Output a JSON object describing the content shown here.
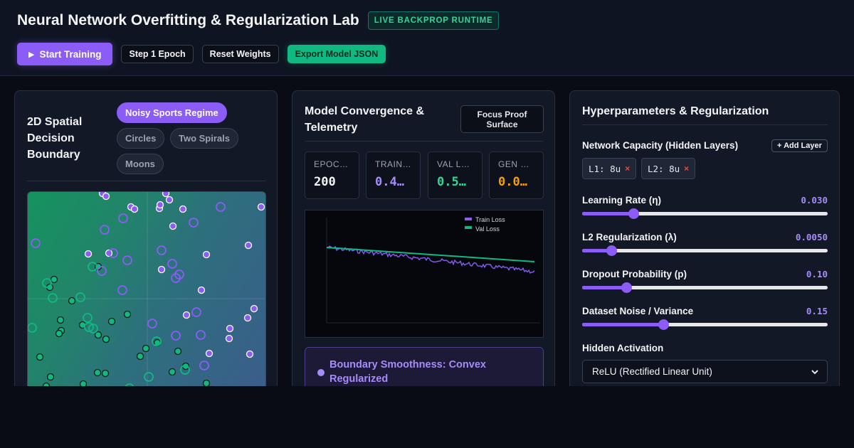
{
  "header": {
    "title": "Neural Network Overfitting & Regularization Lab",
    "badge": "LIVE BACKPROP RUNTIME"
  },
  "toolbar": {
    "start_label": "Start Training",
    "step_label": "Step 1 Epoch",
    "reset_label": "Reset Weights",
    "export_label": "Export Model JSON"
  },
  "boundary_panel": {
    "title": "2D Spatial Decision Boundary",
    "datasets": [
      "Noisy Sports Regime",
      "Circles",
      "Two Spirals",
      "Moons"
    ],
    "active_dataset": "Noisy Sports Regime"
  },
  "convergence_panel": {
    "title": "Model Convergence & Telemetry",
    "focus_label": "Focus Proof Surface",
    "stats": [
      {
        "label": "EPOCHS",
        "value": "200",
        "color": "#f3f4f6"
      },
      {
        "label": "TRAIN…",
        "value": "0.4…",
        "color": "#a78bfa"
      },
      {
        "label": "VAL L…",
        "value": "0.5…",
        "color": "#34d399"
      },
      {
        "label": "GEN …",
        "value": "0.0…",
        "color": "#f59e0b"
      }
    ],
    "legend": [
      {
        "name": "Train Loss",
        "color": "#8b5cf6"
      },
      {
        "name": "Val Loss",
        "color": "#10b981"
      }
    ],
    "insight": "Boundary Smoothness: Convex Regularized"
  },
  "hyper_panel": {
    "title": "Hyperparameters & Regularization",
    "capacity_label": "Network Capacity (Hidden Layers)",
    "add_layer_label": "+ Add Layer",
    "layers": [
      "L1: 8u",
      "L2: 8u"
    ],
    "sliders": [
      {
        "label": "Learning Rate (η)",
        "value": "0.030",
        "fraction": 0.21
      },
      {
        "label": "L2 Regularization (λ)",
        "value": "0.0050",
        "fraction": 0.12
      },
      {
        "label": "Dropout Probability (p)",
        "value": "0.10",
        "fraction": 0.18
      },
      {
        "label": "Dataset Noise / Variance",
        "value": "0.15",
        "fraction": 0.33
      }
    ],
    "activation_label": "Hidden Activation",
    "activation_value": "ReLU (Rectified Linear Unit)"
  },
  "colors": {
    "accent": "#8b5cf6",
    "success": "#10b981",
    "warning": "#f59e0b",
    "danger": "#ef4444"
  }
}
